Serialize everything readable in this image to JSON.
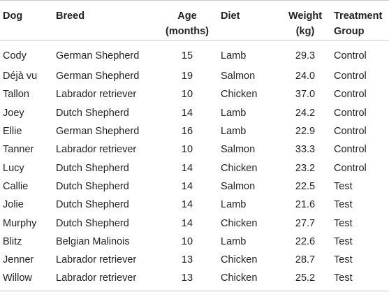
{
  "table": {
    "headers": {
      "dog": "Dog",
      "breed": "Breed",
      "age_line1": "Age",
      "age_line2": "(months)",
      "diet": "Diet",
      "weight_line1": "Weight",
      "weight_line2": "(kg)",
      "group_line1": "Treatment",
      "group_line2": "Group"
    },
    "rows": [
      {
        "dog": "Cody",
        "breed": "German Shepherd",
        "age": "15",
        "diet": "Lamb",
        "weight": "29.3",
        "group": "Control"
      },
      {
        "dog": "Déjà vu",
        "breed": "German Shepherd",
        "age": "19",
        "diet": "Salmon",
        "weight": "24.0",
        "group": "Control"
      },
      {
        "dog": "Tallon",
        "breed": "Labrador retriever",
        "age": "10",
        "diet": "Chicken",
        "weight": "37.0",
        "group": "Control"
      },
      {
        "dog": "Joey",
        "breed": "Dutch Shepherd",
        "age": "14",
        "diet": "Lamb",
        "weight": "24.2",
        "group": "Control"
      },
      {
        "dog": "Ellie",
        "breed": "German Shepherd",
        "age": "16",
        "diet": "Lamb",
        "weight": "22.9",
        "group": "Control"
      },
      {
        "dog": "Tanner",
        "breed": "Labrador retriever",
        "age": "10",
        "diet": "Salmon",
        "weight": "33.3",
        "group": "Control"
      },
      {
        "dog": "Lucy",
        "breed": "Dutch Shepherd",
        "age": "14",
        "diet": "Chicken",
        "weight": "23.2",
        "group": "Control"
      },
      {
        "dog": "Callie",
        "breed": "Dutch Shepherd",
        "age": "14",
        "diet": "Salmon",
        "weight": "22.5",
        "group": "Test"
      },
      {
        "dog": "Jolie",
        "breed": "Dutch Shepherd",
        "age": "14",
        "diet": "Lamb",
        "weight": "21.6",
        "group": "Test"
      },
      {
        "dog": "Murphy",
        "breed": "Dutch Shepherd",
        "age": "14",
        "diet": "Chicken",
        "weight": "27.7",
        "group": "Test"
      },
      {
        "dog": "Blitz",
        "breed": "Belgian Malinois",
        "age": "10",
        "diet": "Lamb",
        "weight": "22.6",
        "group": "Test"
      },
      {
        "dog": "Jenner",
        "breed": "Labrador retriever",
        "age": "13",
        "diet": "Chicken",
        "weight": "28.7",
        "group": "Test"
      },
      {
        "dog": "Willow",
        "breed": "Labrador retriever",
        "age": "13",
        "diet": "Chicken",
        "weight": "25.2",
        "group": "Test"
      }
    ]
  }
}
